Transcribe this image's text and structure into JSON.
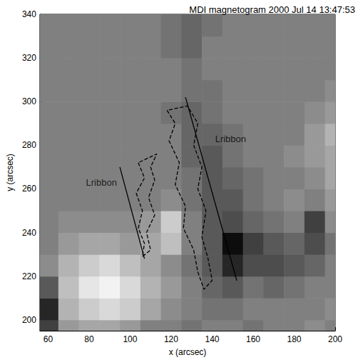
{
  "chart_data": {
    "type": "heatmap",
    "title": "MDI magnetogram 2000 Jul 14 13:47:53",
    "x_label": "x (arcsec)",
    "y_label": "y (arcsec)",
    "xlim": [
      56,
      200
    ],
    "xticks": [
      60,
      80,
      100,
      120,
      140,
      160,
      180,
      200
    ],
    "ylim": [
      195,
      340
    ],
    "yticks": [
      200,
      220,
      240,
      260,
      280,
      300,
      320,
      340
    ],
    "grid": false,
    "zlim": [
      -1,
      1
    ],
    "cells": {
      "x": [
        60,
        70,
        80,
        90,
        100,
        110,
        120,
        130,
        140,
        150,
        160,
        170,
        180,
        190,
        200
      ],
      "y": [
        195,
        205,
        215,
        225,
        235,
        245,
        255,
        265,
        275,
        285,
        295,
        305,
        315,
        325,
        335
      ],
      "z": [
        [
          -0.5,
          0.2,
          0.3,
          0.3,
          0.2,
          0,
          0,
          -0.1,
          0,
          0,
          -0.1,
          0,
          0,
          0.1,
          0
        ],
        [
          -0.7,
          0.4,
          0.6,
          0.7,
          0.6,
          0.3,
          0.1,
          0,
          -0.1,
          -0.1,
          0,
          0,
          0,
          0,
          0.1
        ],
        [
          -0.3,
          0.5,
          0.8,
          0.9,
          0.7,
          0.4,
          0.2,
          0,
          -0.2,
          -0.3,
          -0.1,
          -0.2,
          -0.1,
          0,
          0
        ],
        [
          0.1,
          0.4,
          0.6,
          0.7,
          0.5,
          0.3,
          0.1,
          -0.1,
          -0.3,
          -0.7,
          -0.4,
          -0.4,
          -0.3,
          -0.2,
          0
        ],
        [
          0,
          0.2,
          0.3,
          0.3,
          0.2,
          0.3,
          0.5,
          0,
          -0.3,
          -0.9,
          -0.5,
          -0.3,
          -0.2,
          -0.4,
          -0.1
        ],
        [
          0,
          0.1,
          0.1,
          0.1,
          0.1,
          0.2,
          0.6,
          0,
          -0.3,
          -0.4,
          -0.2,
          -0.1,
          0,
          -0.5,
          0.1
        ],
        [
          0,
          0,
          0,
          0,
          0,
          0,
          0.1,
          -0.1,
          -0.3,
          -0.3,
          -0.1,
          0,
          0.1,
          0,
          0.2
        ],
        [
          0,
          0,
          0,
          0,
          0,
          0,
          0,
          -0.1,
          -0.3,
          -0.2,
          -0.1,
          0,
          0,
          0.1,
          0.3
        ],
        [
          0,
          0,
          0,
          0,
          0,
          0,
          0,
          -0.2,
          -0.3,
          -0.1,
          0,
          0,
          0.1,
          0.2,
          0.3
        ],
        [
          0,
          0,
          0,
          0,
          0,
          0,
          0,
          -0.2,
          -0.2,
          -0.1,
          0,
          0,
          0,
          0.2,
          0.4
        ],
        [
          0,
          0,
          0,
          0,
          0,
          0,
          -0.1,
          -0.2,
          -0.1,
          0,
          0,
          0,
          0,
          0.1,
          0.2
        ],
        [
          0,
          0,
          0,
          0,
          0,
          0,
          0,
          -0.1,
          -0.1,
          0,
          0,
          0,
          0,
          0,
          0.1
        ],
        [
          0,
          0,
          0,
          0,
          0,
          0,
          0,
          -0.1,
          0,
          0,
          0,
          0,
          0,
          0,
          0
        ],
        [
          0,
          0,
          0,
          0,
          0,
          0,
          -0.1,
          -0.2,
          0,
          0,
          0,
          0,
          0,
          0,
          0
        ],
        [
          0,
          0,
          0,
          0,
          0,
          0,
          -0.1,
          -0.2,
          -0.1,
          0,
          0,
          0,
          0,
          0,
          0
        ]
      ]
    },
    "contours": {
      "line_style": "dashed",
      "color": "#000000",
      "paths": [
        {
          "x": [
            104,
            107,
            103,
            106,
            104,
            107,
            106,
            110,
            108,
            112,
            109,
            112,
            110,
            113,
            104
          ],
          "y": [
            272,
            265,
            258,
            250,
            242,
            235,
            229,
            232,
            240,
            248,
            256,
            264,
            270,
            276,
            272
          ]
        },
        {
          "x": [
            118,
            122,
            119,
            124,
            122,
            127,
            126,
            131,
            133,
            136,
            140,
            138,
            135,
            137,
            133,
            135,
            131,
            133,
            128,
            118
          ],
          "y": [
            296,
            290,
            282,
            272,
            262,
            252,
            242,
            232,
            222,
            214,
            218,
            228,
            238,
            250,
            260,
            270,
            280,
            290,
            298,
            296
          ]
        }
      ]
    },
    "lines": {
      "line_style": "solid",
      "color": "#000000",
      "paths": [
        {
          "x": [
            95,
            107
          ],
          "y": [
            270,
            228
          ]
        },
        {
          "x": [
            127,
            152
          ],
          "y": [
            302,
            218
          ]
        }
      ]
    },
    "annotations": [
      {
        "text": "Lribbon",
        "x": 86,
        "y": 263
      },
      {
        "text": "Lribbon",
        "x": 149,
        "y": 283
      }
    ]
  }
}
